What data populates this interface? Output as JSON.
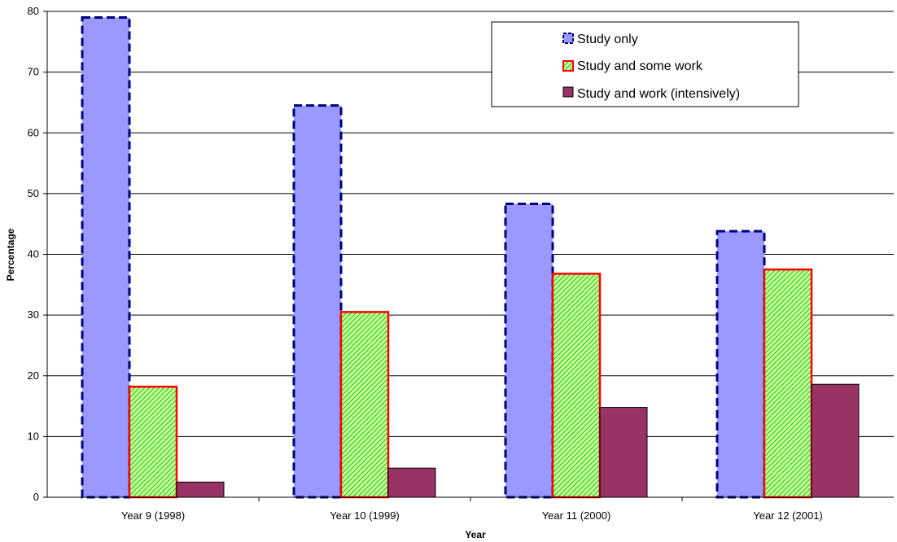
{
  "chart_data": {
    "type": "bar",
    "title": "",
    "xlabel": "Year",
    "ylabel": "Percentage",
    "ylim": [
      0,
      80
    ],
    "yticks": [
      0,
      10,
      20,
      30,
      40,
      50,
      60,
      70,
      80
    ],
    "categories": [
      "Year 9 (1998)",
      "Year 10 (1999)",
      "Year 11 (2000)",
      "Year 12 (2001)"
    ],
    "series": [
      {
        "name": "Study only",
        "values": [
          79.0,
          64.5,
          48.3,
          43.8
        ],
        "fill": "#9999ff",
        "stroke": "#000080",
        "style": "dashed"
      },
      {
        "name": "Study and some work",
        "values": [
          18.2,
          30.5,
          36.8,
          37.5
        ],
        "fill": "#ccff99",
        "stroke": "#ff0000",
        "style": "hatched"
      },
      {
        "name": "Study and work (intensively)",
        "values": [
          2.5,
          4.8,
          14.8,
          18.6
        ],
        "fill": "#993366",
        "stroke": "#000000",
        "style": "solid"
      }
    ],
    "grid": true,
    "legend": "top-right"
  }
}
